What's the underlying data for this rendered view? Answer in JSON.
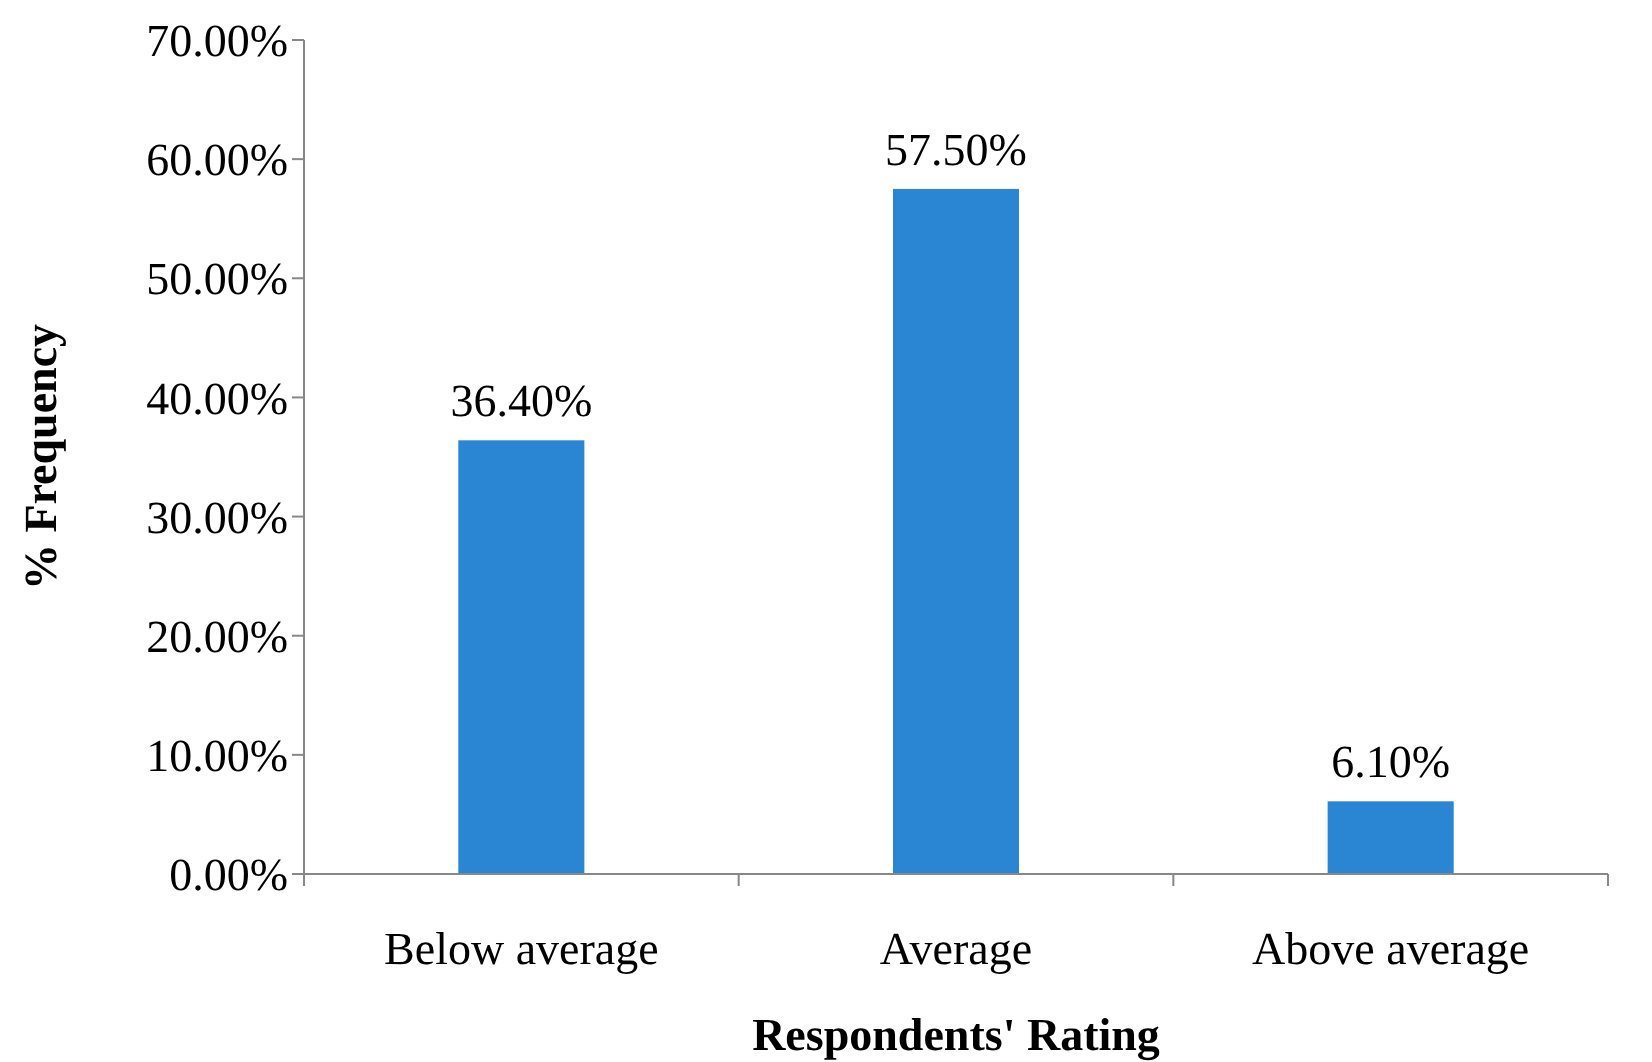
{
  "chart_data": {
    "type": "bar",
    "xlabel": "Respondents' Rating",
    "ylabel": "% Frequency",
    "categories": [
      "Below average",
      "Average",
      "Above average"
    ],
    "values": [
      36.4,
      57.5,
      6.1
    ],
    "color": "#2a85d2",
    "value_labels": [
      "36.40%",
      "57.50%",
      "6.10%"
    ],
    "ylim": [
      0,
      70
    ],
    "yticks": [
      {
        "value": 0,
        "label": "0.00%"
      },
      {
        "value": 10,
        "label": "10.00%"
      },
      {
        "value": 20,
        "label": "20.00%"
      },
      {
        "value": 30,
        "label": "30.00%"
      },
      {
        "value": 40,
        "label": "40.00%"
      },
      {
        "value": 50,
        "label": "50.00%"
      },
      {
        "value": 60,
        "label": "60.00%"
      },
      {
        "value": 70,
        "label": "70.00%"
      }
    ],
    "grid": false
  }
}
